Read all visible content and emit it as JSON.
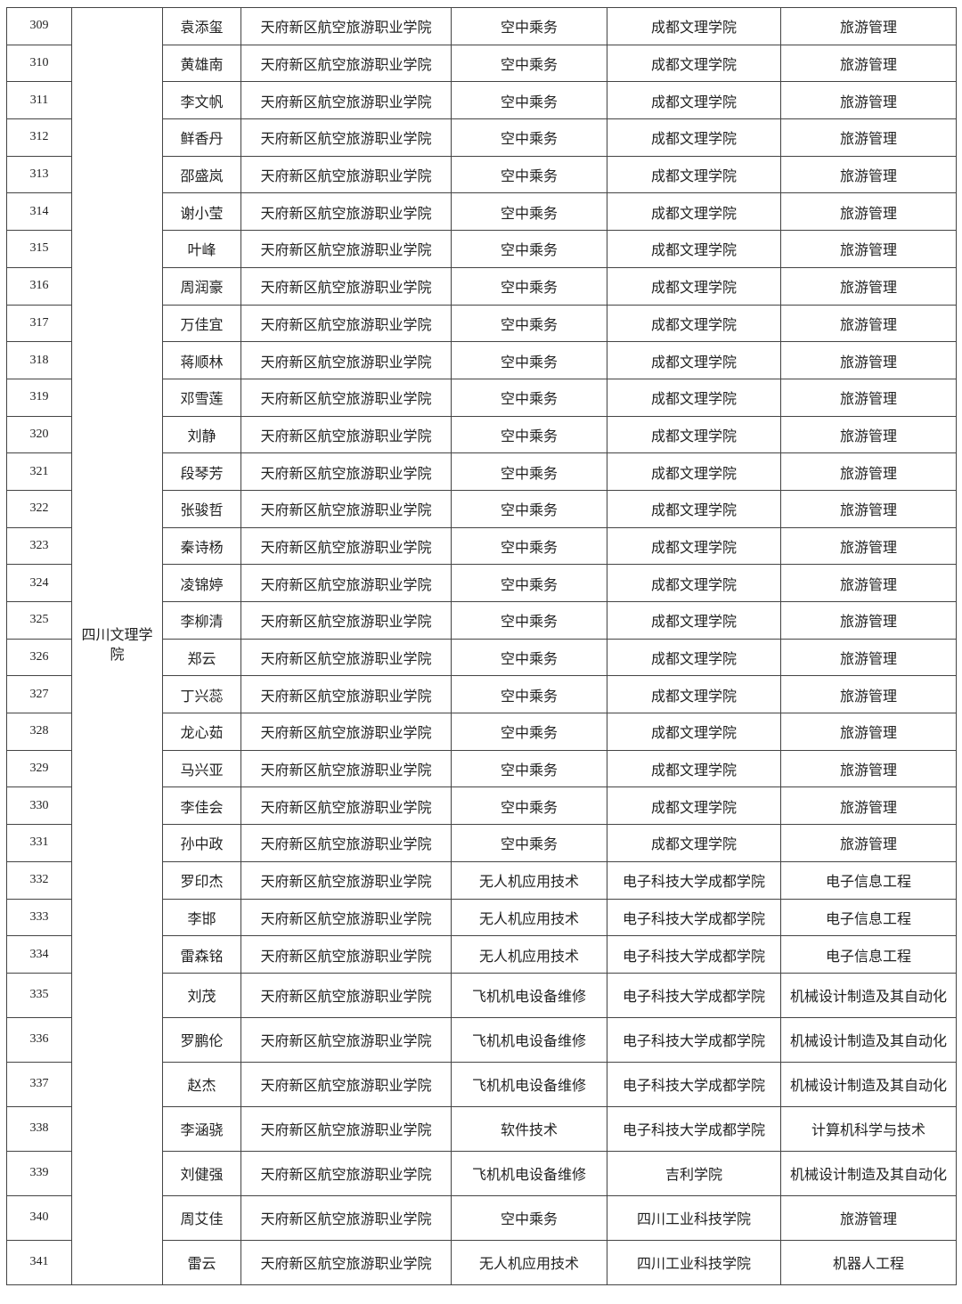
{
  "group_university": "四川文理学院",
  "rows": [
    [
      "309",
      "袁添玺",
      "天府新区航空旅游职业学院",
      "空中乘务",
      "成都文理学院",
      "旅游管理"
    ],
    [
      "310",
      "黄雄南",
      "天府新区航空旅游职业学院",
      "空中乘务",
      "成都文理学院",
      "旅游管理"
    ],
    [
      "311",
      "李文帆",
      "天府新区航空旅游职业学院",
      "空中乘务",
      "成都文理学院",
      "旅游管理"
    ],
    [
      "312",
      "鲜香丹",
      "天府新区航空旅游职业学院",
      "空中乘务",
      "成都文理学院",
      "旅游管理"
    ],
    [
      "313",
      "邵盛岚",
      "天府新区航空旅游职业学院",
      "空中乘务",
      "成都文理学院",
      "旅游管理"
    ],
    [
      "314",
      "谢小莹",
      "天府新区航空旅游职业学院",
      "空中乘务",
      "成都文理学院",
      "旅游管理"
    ],
    [
      "315",
      "叶峰",
      "天府新区航空旅游职业学院",
      "空中乘务",
      "成都文理学院",
      "旅游管理"
    ],
    [
      "316",
      "周润豪",
      "天府新区航空旅游职业学院",
      "空中乘务",
      "成都文理学院",
      "旅游管理"
    ],
    [
      "317",
      "万佳宜",
      "天府新区航空旅游职业学院",
      "空中乘务",
      "成都文理学院",
      "旅游管理"
    ],
    [
      "318",
      "蒋顺林",
      "天府新区航空旅游职业学院",
      "空中乘务",
      "成都文理学院",
      "旅游管理"
    ],
    [
      "319",
      "邓雪莲",
      "天府新区航空旅游职业学院",
      "空中乘务",
      "成都文理学院",
      "旅游管理"
    ],
    [
      "320",
      "刘静",
      "天府新区航空旅游职业学院",
      "空中乘务",
      "成都文理学院",
      "旅游管理"
    ],
    [
      "321",
      "段琴芳",
      "天府新区航空旅游职业学院",
      "空中乘务",
      "成都文理学院",
      "旅游管理"
    ],
    [
      "322",
      "张骏哲",
      "天府新区航空旅游职业学院",
      "空中乘务",
      "成都文理学院",
      "旅游管理"
    ],
    [
      "323",
      "秦诗杨",
      "天府新区航空旅游职业学院",
      "空中乘务",
      "成都文理学院",
      "旅游管理"
    ],
    [
      "324",
      "凌锦婷",
      "天府新区航空旅游职业学院",
      "空中乘务",
      "成都文理学院",
      "旅游管理"
    ],
    [
      "325",
      "李柳清",
      "天府新区航空旅游职业学院",
      "空中乘务",
      "成都文理学院",
      "旅游管理"
    ],
    [
      "326",
      "郑云",
      "天府新区航空旅游职业学院",
      "空中乘务",
      "成都文理学院",
      "旅游管理"
    ],
    [
      "327",
      "丁兴蕊",
      "天府新区航空旅游职业学院",
      "空中乘务",
      "成都文理学院",
      "旅游管理"
    ],
    [
      "328",
      "龙心茹",
      "天府新区航空旅游职业学院",
      "空中乘务",
      "成都文理学院",
      "旅游管理"
    ],
    [
      "329",
      "马兴亚",
      "天府新区航空旅游职业学院",
      "空中乘务",
      "成都文理学院",
      "旅游管理"
    ],
    [
      "330",
      "李佳会",
      "天府新区航空旅游职业学院",
      "空中乘务",
      "成都文理学院",
      "旅游管理"
    ],
    [
      "331",
      "孙中政",
      "天府新区航空旅游职业学院",
      "空中乘务",
      "成都文理学院",
      "旅游管理"
    ],
    [
      "332",
      "罗印杰",
      "天府新区航空旅游职业学院",
      "无人机应用技术",
      "电子科技大学成都学院",
      "电子信息工程"
    ],
    [
      "333",
      "李邯",
      "天府新区航空旅游职业学院",
      "无人机应用技术",
      "电子科技大学成都学院",
      "电子信息工程"
    ],
    [
      "334",
      "雷森铭",
      "天府新区航空旅游职业学院",
      "无人机应用技术",
      "电子科技大学成都学院",
      "电子信息工程"
    ],
    [
      "335",
      "刘茂",
      "天府新区航空旅游职业学院",
      "飞机机电设备维修",
      "电子科技大学成都学院",
      "机械设计制造及其自动化"
    ],
    [
      "336",
      "罗鹏伦",
      "天府新区航空旅游职业学院",
      "飞机机电设备维修",
      "电子科技大学成都学院",
      "机械设计制造及其自动化"
    ],
    [
      "337",
      "赵杰",
      "天府新区航空旅游职业学院",
      "飞机机电设备维修",
      "电子科技大学成都学院",
      "机械设计制造及其自动化"
    ],
    [
      "338",
      "李涵骁",
      "天府新区航空旅游职业学院",
      "软件技术",
      "电子科技大学成都学院",
      "计算机科学与技术"
    ],
    [
      "339",
      "刘健强",
      "天府新区航空旅游职业学院",
      "飞机机电设备维修",
      "吉利学院",
      "机械设计制造及其自动化"
    ],
    [
      "340",
      "周艾佳",
      "天府新区航空旅游职业学院",
      "空中乘务",
      "四川工业科技学院",
      "旅游管理"
    ],
    [
      "341",
      "雷云",
      "天府新区航空旅游职业学院",
      "无人机应用技术",
      "四川工业科技学院",
      "机器人工程"
    ]
  ]
}
